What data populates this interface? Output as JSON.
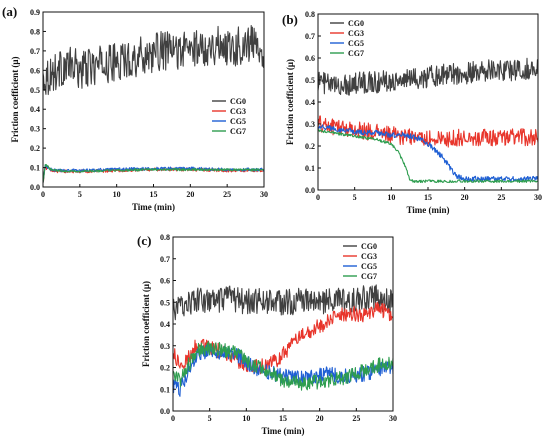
{
  "chart_data": [
    {
      "type": "line",
      "panel_label": "(a)",
      "xlabel": "Time (min)",
      "ylabel": "Friction coefficient (μ)",
      "xlim": [
        0,
        30
      ],
      "ylim": [
        0,
        0.9
      ],
      "xticks": [
        "0",
        "5",
        "10",
        "15",
        "20",
        "25",
        "30"
      ],
      "yticks": [
        "0.0",
        "0.1",
        "0.2",
        "0.3",
        "0.4",
        "0.5",
        "0.6",
        "0.7",
        "0.8",
        "0.9"
      ],
      "legend_position": "center-right",
      "series": [
        {
          "name": "CG0",
          "color": "#404040",
          "x": [
            0,
            1,
            2,
            3,
            4,
            5,
            6,
            8,
            10,
            12,
            14,
            16,
            18,
            20,
            22,
            24,
            26,
            28,
            29,
            30
          ],
          "y": [
            0.56,
            0.58,
            0.6,
            0.62,
            0.62,
            0.6,
            0.61,
            0.63,
            0.64,
            0.66,
            0.68,
            0.7,
            0.7,
            0.71,
            0.72,
            0.73,
            0.72,
            0.74,
            0.73,
            0.71
          ],
          "noise": 0.1
        },
        {
          "name": "CG3",
          "color": "#e8352b",
          "x": [
            0,
            0.3,
            1,
            2,
            5,
            10,
            15,
            20,
            25,
            30
          ],
          "y": [
            0.02,
            0.1,
            0.09,
            0.08,
            0.08,
            0.085,
            0.09,
            0.09,
            0.085,
            0.085
          ],
          "noise": 0.008
        },
        {
          "name": "CG5",
          "color": "#1f5fd4",
          "x": [
            0,
            0.3,
            1,
            2,
            5,
            10,
            15,
            20,
            25,
            30
          ],
          "y": [
            0.02,
            0.11,
            0.09,
            0.085,
            0.085,
            0.09,
            0.095,
            0.095,
            0.09,
            0.09
          ],
          "noise": 0.008
        },
        {
          "name": "CG7",
          "color": "#2e9d4f",
          "x": [
            0,
            0.3,
            1,
            2,
            5,
            10,
            15,
            20,
            25,
            30
          ],
          "y": [
            0.02,
            0.12,
            0.09,
            0.085,
            0.08,
            0.085,
            0.09,
            0.09,
            0.088,
            0.088
          ],
          "noise": 0.006
        }
      ]
    },
    {
      "type": "line",
      "panel_label": "(b)",
      "xlabel": "Time (min)",
      "ylabel": "Friction coefficient (μ)",
      "xlim": [
        0,
        30
      ],
      "ylim": [
        0,
        0.8
      ],
      "xticks": [
        "0",
        "5",
        "10",
        "15",
        "20",
        "25",
        "30"
      ],
      "yticks": [
        "0.0",
        "0.1",
        "0.2",
        "0.3",
        "0.4",
        "0.5",
        "0.6",
        "0.7",
        "0.8"
      ],
      "legend_position": "top-left",
      "series": [
        {
          "name": "CG0",
          "color": "#404040",
          "x": [
            0,
            2,
            4,
            6,
            8,
            10,
            12,
            14,
            16,
            18,
            20,
            22,
            24,
            26,
            28,
            30
          ],
          "y": [
            0.5,
            0.47,
            0.48,
            0.49,
            0.49,
            0.5,
            0.5,
            0.51,
            0.52,
            0.53,
            0.53,
            0.54,
            0.55,
            0.54,
            0.55,
            0.55
          ],
          "noise": 0.05
        },
        {
          "name": "CG3",
          "color": "#e8352b",
          "x": [
            0,
            2,
            4,
            6,
            8,
            10,
            12,
            14,
            16,
            18,
            20,
            22,
            24,
            26,
            28,
            30
          ],
          "y": [
            0.3,
            0.29,
            0.28,
            0.27,
            0.26,
            0.25,
            0.24,
            0.24,
            0.23,
            0.23,
            0.24,
            0.24,
            0.24,
            0.24,
            0.24,
            0.24
          ],
          "noise": 0.04
        },
        {
          "name": "CG5",
          "color": "#1f5fd4",
          "x": [
            0,
            2,
            4,
            6,
            8,
            10,
            12,
            14,
            15,
            16,
            17,
            18,
            19,
            20,
            22,
            25,
            28,
            30
          ],
          "y": [
            0.29,
            0.28,
            0.27,
            0.26,
            0.26,
            0.25,
            0.25,
            0.23,
            0.21,
            0.18,
            0.15,
            0.1,
            0.06,
            0.05,
            0.05,
            0.05,
            0.05,
            0.05
          ],
          "noise": 0.012
        },
        {
          "name": "CG7",
          "color": "#2e9d4f",
          "x": [
            0,
            2,
            4,
            6,
            8,
            10,
            11,
            12,
            12.5,
            13,
            15,
            20,
            25,
            30
          ],
          "y": [
            0.27,
            0.26,
            0.25,
            0.24,
            0.23,
            0.21,
            0.17,
            0.1,
            0.05,
            0.04,
            0.04,
            0.04,
            0.04,
            0.04
          ],
          "noise": 0.006
        }
      ]
    },
    {
      "type": "line",
      "panel_label": "(c)",
      "xlabel": "Time (min)",
      "ylabel": "Friction coefficient (μ)",
      "xlim": [
        0,
        30
      ],
      "ylim": [
        0,
        0.8
      ],
      "xticks": [
        "0",
        "5",
        "10",
        "15",
        "20",
        "25",
        "30"
      ],
      "yticks": [
        "0.0",
        "0.1",
        "0.2",
        "0.3",
        "0.4",
        "0.5",
        "0.6",
        "0.7",
        "0.8"
      ],
      "legend_position": "top-right",
      "series": [
        {
          "name": "CG0",
          "color": "#404040",
          "x": [
            0,
            2,
            4,
            6,
            8,
            10,
            12,
            14,
            16,
            18,
            20,
            22,
            24,
            26,
            28,
            30
          ],
          "y": [
            0.46,
            0.5,
            0.51,
            0.5,
            0.52,
            0.5,
            0.51,
            0.5,
            0.5,
            0.51,
            0.5,
            0.51,
            0.5,
            0.52,
            0.52,
            0.5
          ],
          "noise": 0.06
        },
        {
          "name": "CG3",
          "color": "#e8352b",
          "x": [
            0,
            1,
            2,
            3,
            4,
            5,
            7,
            9,
            11,
            13,
            14,
            15,
            16,
            17,
            18,
            20,
            22,
            24,
            26,
            28,
            30
          ],
          "y": [
            0.27,
            0.2,
            0.24,
            0.3,
            0.3,
            0.29,
            0.27,
            0.23,
            0.2,
            0.21,
            0.23,
            0.26,
            0.3,
            0.33,
            0.36,
            0.39,
            0.43,
            0.45,
            0.44,
            0.47,
            0.44
          ],
          "noise": 0.035
        },
        {
          "name": "CG5",
          "color": "#1f5fd4",
          "x": [
            0,
            1,
            2,
            3,
            4,
            5,
            7,
            9,
            11,
            13,
            15,
            17,
            19,
            21,
            23,
            25,
            27,
            29,
            30
          ],
          "y": [
            0.12,
            0.1,
            0.18,
            0.25,
            0.27,
            0.28,
            0.27,
            0.25,
            0.2,
            0.18,
            0.16,
            0.15,
            0.16,
            0.17,
            0.16,
            0.16,
            0.18,
            0.2,
            0.2
          ],
          "noise": 0.035
        },
        {
          "name": "CG7",
          "color": "#2e9d4f",
          "x": [
            0,
            1,
            2,
            3,
            4,
            5,
            7,
            9,
            11,
            13,
            15,
            17,
            19,
            21,
            23,
            25,
            27,
            29,
            30
          ],
          "y": [
            0.18,
            0.14,
            0.2,
            0.27,
            0.29,
            0.29,
            0.28,
            0.26,
            0.21,
            0.18,
            0.14,
            0.13,
            0.13,
            0.14,
            0.15,
            0.17,
            0.2,
            0.22,
            0.22
          ],
          "noise": 0.035
        }
      ]
    }
  ]
}
